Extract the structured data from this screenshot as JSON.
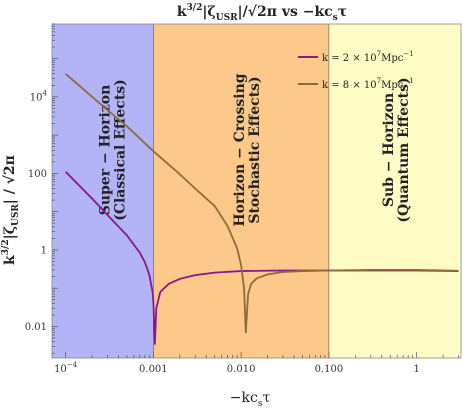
{
  "chart_data": {
    "type": "line",
    "title": "k^{3/2}|ζ_USR|/√2π vs −kc_sτ",
    "xlabel": "−kc_sτ",
    "ylabel": "k^{3/2}|ζ_USR|/√2π",
    "x_scale": "log",
    "y_scale": "log",
    "xlim": [
      7e-05,
      3.2
    ],
    "ylim": [
      0.0015,
      800000
    ],
    "x_ticks": [
      {
        "value": 0.0001,
        "label": "10^-4"
      },
      {
        "value": 0.001,
        "label": "0.001"
      },
      {
        "value": 0.01,
        "label": "0.010"
      },
      {
        "value": 0.1,
        "label": "0.100"
      },
      {
        "value": 1,
        "label": "1"
      }
    ],
    "y_ticks": [
      {
        "value": 0.01,
        "label": "0.01"
      },
      {
        "value": 1,
        "label": "1"
      },
      {
        "value": 100,
        "label": "100"
      },
      {
        "value": 10000,
        "label": "10^4"
      }
    ],
    "regions": [
      {
        "x0": 7e-05,
        "x1": 0.001,
        "color": "#b3b3f7",
        "label_top": "Super − Horizon",
        "label_bottom": "(Classical Effects)"
      },
      {
        "x0": 0.001,
        "x1": 0.1,
        "color": "#fcc98b",
        "label_top": "Horizon − Crossing",
        "label_bottom": "Stochastic Effects)"
      },
      {
        "x0": 0.1,
        "x1": 3.2,
        "color": "#fdfcc4",
        "label_top": "Sub − Horizon",
        "label_bottom": "(Quantum Effects)"
      }
    ],
    "series": [
      {
        "name": "k = 2 × 10^7 Mpc^-1",
        "color": "#8b168b",
        "points": [
          [
            0.0001,
            110
          ],
          [
            0.0002,
            22
          ],
          [
            0.0003,
            8.2
          ],
          [
            0.0005,
            2.4
          ],
          [
            0.0007,
            0.85
          ],
          [
            0.0008,
            0.48
          ],
          [
            0.0009,
            0.22
          ],
          [
            0.00098,
            0.08
          ],
          [
            0.001,
            0.045
          ],
          [
            0.00104,
            0.0035
          ],
          [
            0.00108,
            0.03
          ],
          [
            0.0012,
            0.08
          ],
          [
            0.0015,
            0.13
          ],
          [
            0.002,
            0.175
          ],
          [
            0.003,
            0.22
          ],
          [
            0.005,
            0.255
          ],
          [
            0.01,
            0.28
          ],
          [
            0.03,
            0.29
          ],
          [
            0.1,
            0.29
          ],
          [
            0.3,
            0.29
          ],
          [
            1,
            0.29
          ],
          [
            3,
            0.28
          ]
        ]
      },
      {
        "name": "k = 8 × 10^7 Mpc^-1",
        "color": "#8f6a3a",
        "points": [
          [
            0.0001,
            40000
          ],
          [
            0.0003,
            4500
          ],
          [
            0.0005,
            1700
          ],
          [
            0.001,
            380
          ],
          [
            0.002,
            95
          ],
          [
            0.003,
            40
          ],
          [
            0.005,
            14
          ],
          [
            0.007,
            4.2
          ],
          [
            0.009,
            1.1
          ],
          [
            0.01,
            0.4
          ],
          [
            0.0108,
            0.1
          ],
          [
            0.0113,
            0.007
          ],
          [
            0.012,
            0.07
          ],
          [
            0.013,
            0.13
          ],
          [
            0.015,
            0.18
          ],
          [
            0.02,
            0.23
          ],
          [
            0.03,
            0.265
          ],
          [
            0.05,
            0.28
          ],
          [
            0.1,
            0.29
          ],
          [
            0.3,
            0.3
          ],
          [
            1,
            0.3
          ],
          [
            3,
            0.285
          ]
        ]
      }
    ]
  },
  "title": {
    "main": "k",
    "main_sup": "3/2",
    "rest": "|ζ",
    "sub": "USR",
    "tail": "|/√2π vs −kc",
    "tail_sub": "s",
    "end": "τ"
  },
  "axes": {
    "x_main": "−kc",
    "x_sub": "s",
    "x_end": "τ",
    "y_main": "k",
    "y_sup": "3/2",
    "y_rest": "|ζ",
    "y_sub": "USR",
    "y_tail": "| / √2π"
  },
  "legend": {
    "items": [
      {
        "pre": "k = 2 × 10",
        "exp": "7",
        "post": "Mpc",
        "post_sup": "−1",
        "color": "#8b168b"
      },
      {
        "pre": "k = 8 × 10",
        "exp": "7",
        "post": "Mpc",
        "post_sup": "−1",
        "color": "#8f6a3a"
      }
    ]
  }
}
